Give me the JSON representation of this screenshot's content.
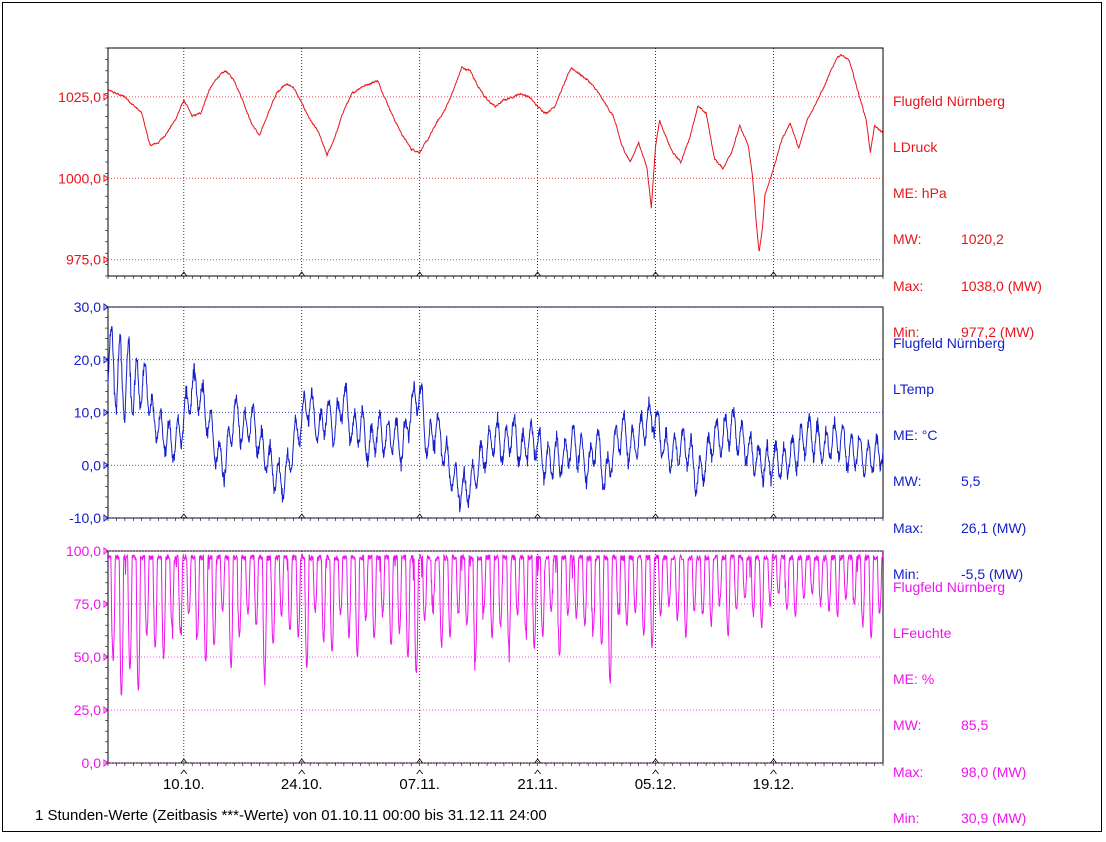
{
  "footer_text": "1 Stunden-Werte (Zeitbasis ***-Werte) von 01.10.11 00:00 bis 31.12.11 24:00",
  "x_axis": {
    "ticks": [
      "10.10.",
      "24.10.",
      "07.11.",
      "21.11.",
      "05.12.",
      "19.12."
    ],
    "tick_days": [
      9,
      23,
      37,
      51,
      65,
      79
    ],
    "range_days": [
      0,
      92
    ]
  },
  "chart_data": [
    {
      "type": "line",
      "color": "#e8141c",
      "ylim": [
        970,
        1040
      ],
      "yticks": [
        975,
        1000,
        1025
      ],
      "ytick_labels": [
        "975,0",
        "1000,0",
        "1025,0"
      ],
      "legend": {
        "station": "Flugfeld Nürnberg",
        "series": "LDruck",
        "me_label": "ME:",
        "me_value": "hPa",
        "mw_label": "MW:",
        "mw_value": "1020,2",
        "max_label": "Max:",
        "max_value": "1038,0 (MW)",
        "min_label": "Min:",
        "min_value": "977,2 (MW)"
      },
      "keypoints": [
        [
          0,
          1027
        ],
        [
          2,
          1025
        ],
        [
          4,
          1020
        ],
        [
          5,
          1010
        ],
        [
          6,
          1011
        ],
        [
          7,
          1014
        ],
        [
          8,
          1018
        ],
        [
          9,
          1024
        ],
        [
          10,
          1019
        ],
        [
          11,
          1020
        ],
        [
          12,
          1027
        ],
        [
          13,
          1031
        ],
        [
          14,
          1033
        ],
        [
          15,
          1030
        ],
        [
          16,
          1024
        ],
        [
          17,
          1017
        ],
        [
          18,
          1013
        ],
        [
          19,
          1020
        ],
        [
          20,
          1026
        ],
        [
          21,
          1029
        ],
        [
          22,
          1028
        ],
        [
          23,
          1023
        ],
        [
          24,
          1018
        ],
        [
          25,
          1014
        ],
        [
          26,
          1007
        ],
        [
          27,
          1013
        ],
        [
          28,
          1021
        ],
        [
          29,
          1026
        ],
        [
          30,
          1028
        ],
        [
          31,
          1029
        ],
        [
          32,
          1030
        ],
        [
          33,
          1024
        ],
        [
          34,
          1018
        ],
        [
          35,
          1013
        ],
        [
          36,
          1009
        ],
        [
          37,
          1008
        ],
        [
          38,
          1012
        ],
        [
          39,
          1017
        ],
        [
          40,
          1021
        ],
        [
          41,
          1027
        ],
        [
          42,
          1034
        ],
        [
          43,
          1033
        ],
        [
          44,
          1028
        ],
        [
          45,
          1024
        ],
        [
          46,
          1022
        ],
        [
          47,
          1024
        ],
        [
          48,
          1025
        ],
        [
          49,
          1026
        ],
        [
          50,
          1025
        ],
        [
          51,
          1022
        ],
        [
          52,
          1020
        ],
        [
          53,
          1022
        ],
        [
          54,
          1028
        ],
        [
          55,
          1034
        ],
        [
          56,
          1032
        ],
        [
          57,
          1030
        ],
        [
          58,
          1027
        ],
        [
          59,
          1023
        ],
        [
          60,
          1019
        ],
        [
          61,
          1010
        ],
        [
          62,
          1005
        ],
        [
          63,
          1011
        ],
        [
          64,
          1003
        ],
        [
          64.5,
          991
        ],
        [
          65,
          1010
        ],
        [
          65.5,
          1018
        ],
        [
          66,
          1014
        ],
        [
          67,
          1008
        ],
        [
          68,
          1005
        ],
        [
          69,
          1012
        ],
        [
          70,
          1022
        ],
        [
          71,
          1020
        ],
        [
          72,
          1006
        ],
        [
          73,
          1003
        ],
        [
          74,
          1008
        ],
        [
          75,
          1016
        ],
        [
          76,
          1010
        ],
        [
          76.5,
          1001
        ],
        [
          77,
          985
        ],
        [
          77.3,
          977.2
        ],
        [
          77.7,
          985
        ],
        [
          78,
          995
        ],
        [
          79,
          1003
        ],
        [
          80,
          1012
        ],
        [
          81,
          1017
        ],
        [
          82,
          1009
        ],
        [
          83,
          1018
        ],
        [
          84,
          1023
        ],
        [
          85,
          1028
        ],
        [
          86,
          1034
        ],
        [
          86.5,
          1037
        ],
        [
          87,
          1038
        ],
        [
          88,
          1036
        ],
        [
          89,
          1027
        ],
        [
          90,
          1018
        ],
        [
          90.5,
          1008
        ],
        [
          91,
          1016
        ],
        [
          92,
          1014
        ]
      ]
    },
    {
      "type": "line",
      "color": "#1520c8",
      "ylim": [
        -10,
        30
      ],
      "yticks": [
        -10,
        0,
        10,
        20,
        30
      ],
      "ytick_labels": [
        "-10,0",
        "0,0",
        "10,0",
        "20,0",
        "30,0"
      ],
      "legend": {
        "station": "Flugfeld Nürnberg",
        "series": "LTemp",
        "me_label": "ME:",
        "me_value": "°C",
        "mw_label": "MW:",
        "mw_value": "5,5",
        "max_label": "Max:",
        "max_value": "26,1 (MW)",
        "min_label": "Min:",
        "min_value": "-5,5 (MW)"
      },
      "keypoints": [
        [
          0,
          15
        ],
        [
          0.5,
          26
        ],
        [
          1,
          10
        ],
        [
          1.5,
          25
        ],
        [
          2,
          8
        ],
        [
          2.5,
          24
        ],
        [
          3,
          9
        ],
        [
          3.5,
          20
        ],
        [
          4,
          12
        ],
        [
          4.5,
          18
        ],
        [
          5,
          10
        ],
        [
          6,
          7
        ],
        [
          7,
          5
        ],
        [
          8,
          4
        ],
        [
          9,
          9
        ],
        [
          10,
          15
        ],
        [
          11,
          13
        ],
        [
          12,
          8
        ],
        [
          13,
          2
        ],
        [
          14,
          0
        ],
        [
          15,
          11
        ],
        [
          16,
          6
        ],
        [
          17,
          9
        ],
        [
          18,
          4
        ],
        [
          19,
          1
        ],
        [
          20,
          -2
        ],
        [
          21,
          -3
        ],
        [
          22,
          4
        ],
        [
          23,
          9
        ],
        [
          24,
          12
        ],
        [
          25,
          6
        ],
        [
          26,
          10
        ],
        [
          27,
          7
        ],
        [
          28,
          13
        ],
        [
          29,
          6
        ],
        [
          30,
          8
        ],
        [
          31,
          3
        ],
        [
          32,
          7
        ],
        [
          33,
          5
        ],
        [
          34,
          6
        ],
        [
          35,
          3
        ],
        [
          36,
          11
        ],
        [
          37,
          14
        ],
        [
          38,
          3
        ],
        [
          39,
          8
        ],
        [
          40,
          2
        ],
        [
          41,
          -3
        ],
        [
          42,
          -5
        ],
        [
          43,
          -4
        ],
        [
          44,
          0
        ],
        [
          45,
          3
        ],
        [
          46,
          6
        ],
        [
          47,
          3
        ],
        [
          48,
          7
        ],
        [
          49,
          2
        ],
        [
          50,
          5
        ],
        [
          51,
          4
        ],
        [
          52,
          0
        ],
        [
          53,
          2
        ],
        [
          54,
          1
        ],
        [
          55,
          4
        ],
        [
          56,
          3
        ],
        [
          57,
          -1
        ],
        [
          58,
          5
        ],
        [
          59,
          -3
        ],
        [
          60,
          3
        ],
        [
          61,
          7
        ],
        [
          62,
          3
        ],
        [
          63,
          5
        ],
        [
          64,
          9
        ],
        [
          65,
          9
        ],
        [
          66,
          3
        ],
        [
          67,
          2
        ],
        [
          68,
          4
        ],
        [
          69,
          3
        ],
        [
          70,
          -3
        ],
        [
          71,
          1
        ],
        [
          72,
          6
        ],
        [
          73,
          5
        ],
        [
          74,
          8
        ],
        [
          75,
          5
        ],
        [
          76,
          3
        ],
        [
          77,
          1
        ],
        [
          78,
          0
        ],
        [
          79,
          1
        ],
        [
          80,
          0
        ],
        [
          81,
          2
        ],
        [
          82,
          3
        ],
        [
          83,
          6
        ],
        [
          84,
          5
        ],
        [
          85,
          3
        ],
        [
          86,
          5
        ],
        [
          87,
          5
        ],
        [
          88,
          2
        ],
        [
          89,
          3
        ],
        [
          90,
          1
        ],
        [
          91,
          2
        ],
        [
          92,
          3
        ]
      ]
    },
    {
      "type": "line",
      "color": "#ee14ee",
      "ylim": [
        0,
        100
      ],
      "yticks": [
        0,
        25,
        50,
        75,
        100
      ],
      "ytick_labels": [
        "0,0",
        "25,0",
        "50,0",
        "75,0",
        "100,0"
      ],
      "legend": {
        "station": "Flugfeld Nürnberg",
        "series": "LFeuchte",
        "me_label": "ME:",
        "me_value": "%",
        "mw_label": "MW:",
        "mw_value": "85,5",
        "max_label": "Max:",
        "max_value": "98,0 (MW)",
        "min_label": "Min:",
        "min_value": "30,9 (MW)"
      },
      "daily_min": [
        50,
        31,
        45,
        35,
        60,
        55,
        50,
        65,
        62,
        70,
        60,
        48,
        55,
        72,
        45,
        60,
        70,
        65,
        40,
        55,
        70,
        62,
        60,
        45,
        72,
        58,
        52,
        70,
        60,
        50,
        68,
        58,
        70,
        55,
        62,
        50,
        42,
        68,
        75,
        55,
        60,
        70,
        65,
        48,
        72,
        60,
        65,
        55,
        70,
        62,
        55,
        60,
        72,
        50,
        70,
        68,
        65,
        62,
        55,
        38,
        70,
        65,
        72,
        60,
        55,
        70,
        75,
        68,
        60,
        72,
        70,
        65,
        75,
        60,
        72,
        78,
        70,
        65,
        75,
        80,
        72,
        70,
        78,
        80,
        75,
        72,
        70,
        78,
        75,
        65,
        60,
        70
      ]
    }
  ]
}
